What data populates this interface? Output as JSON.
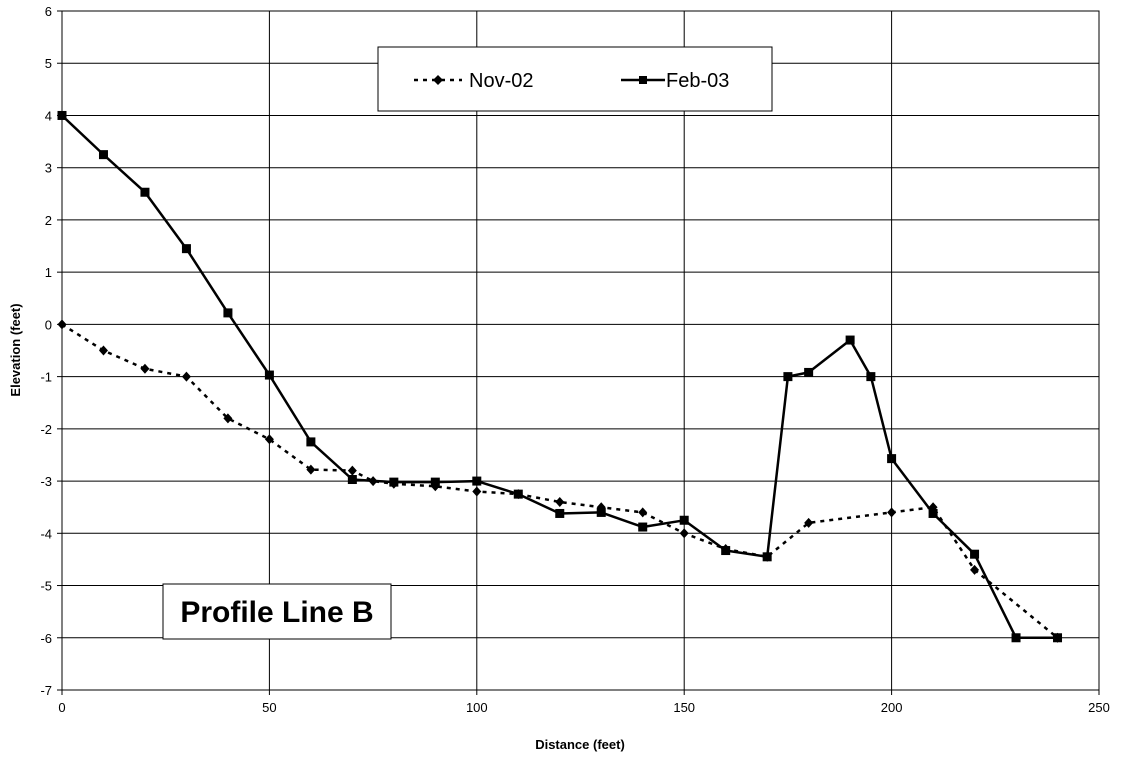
{
  "chart_data": {
    "type": "line",
    "xlabel": "Distance (feet)",
    "ylabel": "Elevation (feet)",
    "xlim": [
      0,
      250
    ],
    "ylim": [
      -7,
      6
    ],
    "x_ticks": [
      0,
      50,
      100,
      150,
      200,
      250
    ],
    "y_ticks": [
      -7,
      -6,
      -5,
      -4,
      -3,
      -2,
      -1,
      0,
      1,
      2,
      3,
      4,
      5,
      6
    ],
    "grid": true,
    "legend_position": "top-center",
    "annotation": "Profile Line B",
    "series": [
      {
        "name": "Nov-02",
        "style": "dotted",
        "marker": "diamond",
        "color": "#000000",
        "points": [
          [
            0,
            0
          ],
          [
            10,
            -0.5
          ],
          [
            20,
            -0.85
          ],
          [
            30,
            -1
          ],
          [
            40,
            -1.8
          ],
          [
            50,
            -2.2
          ],
          [
            60,
            -2.78
          ],
          [
            70,
            -2.8
          ],
          [
            75,
            -3
          ],
          [
            80,
            -3.05
          ],
          [
            90,
            -3.1
          ],
          [
            100,
            -3.2
          ],
          [
            110,
            -3.25
          ],
          [
            120,
            -3.4
          ],
          [
            130,
            -3.5
          ],
          [
            140,
            -3.6
          ],
          [
            150,
            -4
          ],
          [
            160,
            -4.3
          ],
          [
            170,
            -4.45
          ],
          [
            180,
            -3.8
          ],
          [
            200,
            -3.6
          ],
          [
            210,
            -3.5
          ],
          [
            220,
            -4.7
          ],
          [
            240,
            -6
          ]
        ]
      },
      {
        "name": "Feb-03",
        "style": "solid",
        "marker": "square",
        "color": "#000000",
        "points": [
          [
            0,
            4
          ],
          [
            10,
            3.25
          ],
          [
            20,
            2.53
          ],
          [
            30,
            1.45
          ],
          [
            40,
            0.22
          ],
          [
            50,
            -0.97
          ],
          [
            60,
            -2.25
          ],
          [
            70,
            -2.97
          ],
          [
            80,
            -3.02
          ],
          [
            90,
            -3.02
          ],
          [
            100,
            -3
          ],
          [
            110,
            -3.25
          ],
          [
            120,
            -3.62
          ],
          [
            130,
            -3.6
          ],
          [
            140,
            -3.88
          ],
          [
            150,
            -3.75
          ],
          [
            160,
            -4.33
          ],
          [
            170,
            -4.45
          ],
          [
            175,
            -1
          ],
          [
            180,
            -0.92
          ],
          [
            190,
            -0.3
          ],
          [
            195,
            -1
          ],
          [
            200,
            -2.57
          ],
          [
            210,
            -3.62
          ],
          [
            220,
            -4.4
          ],
          [
            230,
            -6
          ],
          [
            240,
            -6
          ]
        ]
      }
    ]
  }
}
